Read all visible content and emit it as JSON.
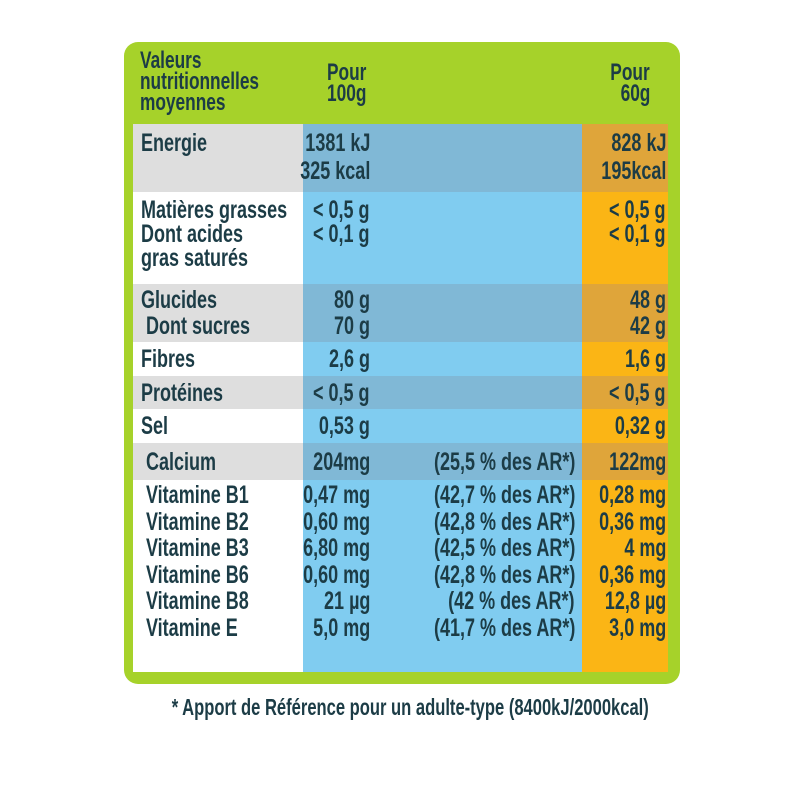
{
  "header": {
    "title_lines": [
      "Valeurs",
      "nutritionnelles",
      "moyennes"
    ],
    "col_100g": [
      "Pour",
      "100g"
    ],
    "col_60g": [
      "Pour",
      "60g"
    ]
  },
  "rows": [
    {
      "label": [
        "Energie"
      ],
      "v100": [
        "1381 kJ",
        "325 kcal"
      ],
      "ar": [],
      "v60": [
        "828 kJ",
        "195kcal"
      ]
    },
    {
      "label": [
        "Matières grasses",
        "Dont acides",
        "gras saturés"
      ],
      "v100": [
        "< 0,5 g",
        "< 0,1 g"
      ],
      "ar": [],
      "v60": [
        "< 0,5 g",
        "< 0,1 g"
      ]
    },
    {
      "label": [
        "Glucides",
        " Dont sucres"
      ],
      "v100": [
        "80 g",
        "70 g"
      ],
      "ar": [],
      "v60": [
        "48 g",
        "42 g"
      ]
    },
    {
      "label": [
        "Fibres"
      ],
      "v100": [
        "2,6 g"
      ],
      "ar": [],
      "v60": [
        "1,6 g"
      ]
    },
    {
      "label": [
        "Protéines"
      ],
      "v100": [
        "< 0,5 g"
      ],
      "ar": [],
      "v60": [
        "< 0,5 g"
      ]
    },
    {
      "label": [
        "Sel"
      ],
      "v100": [
        "0,53 g"
      ],
      "ar": [],
      "v60": [
        "0,32 g"
      ]
    },
    {
      "label": [
        " Calcium"
      ],
      "v100": [
        "204mg"
      ],
      "ar": [
        "(25,5 % des AR*)"
      ],
      "v60": [
        "122mg"
      ]
    },
    {
      "label": [
        " Vitamine B1",
        " Vitamine B2",
        " Vitamine B3",
        " Vitamine B6",
        " Vitamine B8",
        " Vitamine E"
      ],
      "v100": [
        "0,47 mg",
        "0,60 mg",
        "6,80 mg",
        "0,60 mg",
        "21 µg",
        "5,0 mg"
      ],
      "ar": [
        "(42,7 % des AR*)",
        "(42,8 % des AR*)",
        "(42,5 % des AR*)",
        "(42,8 % des AR*)",
        "(42 % des AR*)",
        "(41,7 % des AR*)"
      ],
      "v60": [
        "0,28 mg",
        "0,36 mg",
        "4 mg",
        "0,36 mg",
        "12,8 µg",
        "3,0 mg"
      ]
    }
  ],
  "footnote": "* Apport de Référence pour un adulte-type (8400kJ/2000kcal)",
  "colors": {
    "frame": "#a6d22a",
    "blue_dark": "#80b8d6",
    "blue_light": "#80ccf0",
    "orange_dark": "#dfa53a",
    "orange_light": "#fbb515",
    "grey": "#dedede",
    "text": "#1c3c46"
  }
}
